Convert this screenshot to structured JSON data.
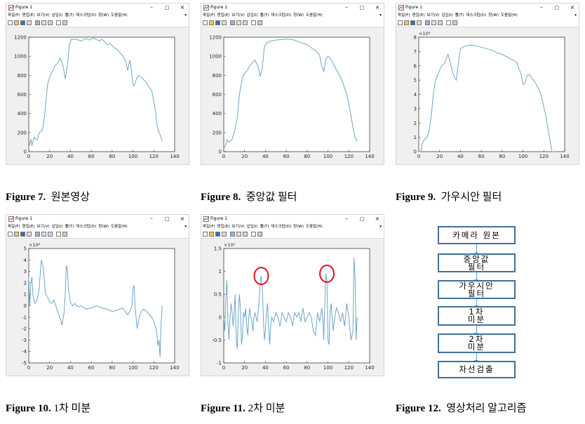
{
  "window": {
    "title": "Figure 1",
    "menu": [
      "파일(F)",
      "편집(E)",
      "보기(V)",
      "삽입(I)",
      "툴(T)",
      "데스크탑(D)",
      "창(W)",
      "도움말(H)"
    ]
  },
  "captions": [
    {
      "num": "Figure 7.",
      "text": "원본영상"
    },
    {
      "num": "Figure 8.",
      "text": "중앙값 필터"
    },
    {
      "num": "Figure 9.",
      "text": "가우시안 필터"
    },
    {
      "num": "Figure 10.",
      "text": "1차 미분"
    },
    {
      "num": "Figure 11.",
      "text": "2차 미분"
    },
    {
      "num": "Figure 12.",
      "text": "영상처리 알고리즘"
    }
  ],
  "flowchart": {
    "steps": [
      {
        "line1": "카메라 원본",
        "line2": ""
      },
      {
        "line1": "중앙값",
        "line2": "필터"
      },
      {
        "line1": "가우시안",
        "line2": "필터"
      },
      {
        "line1": "1차",
        "line2": "미분"
      },
      {
        "line1": "2차",
        "line2": "미분"
      },
      {
        "line1": "차선검출",
        "line2": ""
      }
    ]
  },
  "colors": {
    "line": "#6ea5c8",
    "highlight": "#e0101e",
    "flow_border": "#41719c"
  },
  "chart_data": [
    {
      "type": "line",
      "xlim": [
        0,
        140
      ],
      "ylim": [
        0,
        1200
      ],
      "xticks": [
        "0",
        "20",
        "40",
        "60",
        "80",
        "100",
        "120",
        "140"
      ],
      "yticks": [
        "0",
        "200",
        "400",
        "600",
        "800",
        "1000",
        "1200"
      ],
      "exponent": "",
      "series": [
        {
          "x": [
            0,
            2,
            3,
            5,
            8,
            10,
            13,
            15,
            18,
            20,
            23,
            25,
            28,
            30,
            33,
            35,
            37,
            39,
            41,
            43,
            45,
            48,
            50,
            53,
            55,
            58,
            60,
            62,
            65,
            68,
            70,
            73,
            75,
            78,
            80,
            83,
            85,
            88,
            90,
            93,
            95,
            97,
            98,
            100,
            101,
            103,
            105,
            108,
            110,
            113,
            115,
            118,
            120,
            122,
            123,
            125,
            127,
            128
          ],
          "y": [
            40,
            130,
            60,
            150,
            120,
            200,
            220,
            360,
            700,
            780,
            850,
            900,
            930,
            980,
            900,
            760,
            900,
            1120,
            1180,
            1175,
            1180,
            1170,
            1160,
            1175,
            1185,
            1170,
            1180,
            1190,
            1175,
            1160,
            1180,
            1150,
            1120,
            1135,
            1110,
            1080,
            1070,
            1030,
            1010,
            950,
            850,
            960,
            900,
            700,
            690,
            750,
            800,
            780,
            760,
            720,
            680,
            640,
            530,
            400,
            280,
            200,
            150,
            110
          ]
        }
      ]
    },
    {
      "type": "line",
      "xlim": [
        0,
        140
      ],
      "ylim": [
        0,
        1200
      ],
      "xticks": [
        "0",
        "20",
        "40",
        "60",
        "80",
        "100",
        "120",
        "140"
      ],
      "yticks": [
        "0",
        "200",
        "400",
        "600",
        "800",
        "1000",
        "1200"
      ],
      "exponent": "",
      "series": [
        {
          "x": [
            0,
            2,
            3,
            5,
            8,
            10,
            13,
            15,
            18,
            20,
            23,
            25,
            28,
            30,
            33,
            35,
            37,
            39,
            41,
            45,
            50,
            55,
            60,
            65,
            68,
            70,
            73,
            75,
            78,
            80,
            83,
            85,
            88,
            90,
            92,
            94,
            96,
            97,
            98,
            100,
            102,
            104,
            106,
            108,
            110,
            112,
            115,
            118,
            120,
            122,
            124,
            126,
            128
          ],
          "y": [
            30,
            80,
            120,
            100,
            130,
            200,
            350,
            600,
            780,
            820,
            860,
            900,
            940,
            960,
            890,
            790,
            880,
            1100,
            1140,
            1160,
            1170,
            1175,
            1180,
            1175,
            1170,
            1160,
            1150,
            1140,
            1130,
            1120,
            1100,
            1080,
            1060,
            1040,
            1010,
            900,
            840,
            900,
            970,
            1000,
            980,
            950,
            900,
            860,
            820,
            780,
            700,
            600,
            500,
            380,
            250,
            150,
            110
          ]
        }
      ]
    },
    {
      "type": "line",
      "xlim": [
        0,
        140
      ],
      "ylim": [
        0,
        8
      ],
      "xticks": [
        "0",
        "20",
        "40",
        "60",
        "80",
        "100",
        "120",
        "140"
      ],
      "yticks": [
        "0",
        "1",
        "2",
        "3",
        "4",
        "5",
        "6",
        "7",
        "8"
      ],
      "exponent": "×10⁴",
      "series": [
        {
          "x": [
            0,
            2,
            3,
            5,
            8,
            10,
            12,
            14,
            16,
            18,
            20,
            22,
            25,
            28,
            30,
            32,
            34,
            36,
            38,
            40,
            45,
            50,
            55,
            60,
            65,
            70,
            75,
            80,
            85,
            90,
            93,
            95,
            96,
            98,
            100,
            102,
            104,
            106,
            108,
            110,
            112,
            115,
            118,
            120,
            122,
            124,
            126,
            127,
            128,
            130
          ],
          "y": [
            0,
            0,
            0.5,
            0.8,
            1,
            1.5,
            2.5,
            4,
            5,
            5.3,
            5.7,
            6,
            6.2,
            6.8,
            6.3,
            5.7,
            5.2,
            5.0,
            6.2,
            7.2,
            7.4,
            7.45,
            7.4,
            7.3,
            7.2,
            7.1,
            6.9,
            6.8,
            6.6,
            6.4,
            6.3,
            6.1,
            5.8,
            5.5,
            4.7,
            4.8,
            5.3,
            5.4,
            5.2,
            5.0,
            4.8,
            4.4,
            3.8,
            3.1,
            2.5,
            1.6,
            0.8,
            0.3,
            0,
            0
          ]
        }
      ]
    },
    {
      "type": "line",
      "xlim": [
        0,
        140
      ],
      "ylim": [
        -5,
        5
      ],
      "xticks": [
        "0",
        "20",
        "40",
        "60",
        "80",
        "100",
        "120",
        "140"
      ],
      "yticks": [
        "-5",
        "-4",
        "-3",
        "-2",
        "-1",
        "0",
        "1",
        "2",
        "3",
        "4",
        "5"
      ],
      "exponent": "×10⁴",
      "series": [
        {
          "x": [
            0,
            1,
            2,
            3,
            4,
            5,
            6,
            8,
            10,
            12,
            14,
            16,
            18,
            20,
            22,
            24,
            26,
            28,
            30,
            32,
            34,
            35,
            36,
            37,
            38,
            40,
            42,
            44,
            46,
            48,
            50,
            55,
            60,
            65,
            70,
            75,
            80,
            85,
            90,
            95,
            98,
            99,
            100,
            101,
            102,
            104,
            106,
            108,
            110,
            112,
            114,
            116,
            118,
            120,
            122,
            123,
            124,
            125,
            126,
            127,
            128
          ],
          "y": [
            2.5,
            0,
            2,
            2.5,
            1,
            0.5,
            0.2,
            0.5,
            1.5,
            4,
            3.3,
            1,
            0.8,
            0.3,
            0.2,
            0.5,
            0,
            -0.6,
            -1.1,
            -1.7,
            -0.5,
            1,
            3.5,
            3.2,
            1.5,
            0.3,
            0,
            0.2,
            0,
            -0.1,
            0,
            -0.3,
            -0.2,
            0,
            -0.2,
            -0.3,
            -0.5,
            -0.4,
            -0.2,
            -0.8,
            -0.3,
            0,
            1.5,
            1.8,
            0,
            -2,
            -1,
            -0.5,
            -0.3,
            -0.4,
            -0.6,
            -0.8,
            -1,
            -1.4,
            -2,
            -2.5,
            -3.5,
            -3,
            -4.5,
            -1.5,
            0
          ]
        }
      ]
    },
    {
      "type": "line",
      "xlim": [
        0,
        140
      ],
      "ylim": [
        -1,
        1.5
      ],
      "xticks": [
        "0",
        "20",
        "40",
        "60",
        "80",
        "100",
        "120",
        "140"
      ],
      "yticks": [
        "-1",
        "-0.5",
        "0",
        "0.5",
        "1",
        "1.5"
      ],
      "exponent": "×10⁵",
      "series": [
        {
          "x": [
            0,
            1,
            2,
            3,
            4,
            5,
            6,
            7,
            8,
            9,
            10,
            11,
            12,
            13,
            14,
            15,
            16,
            17,
            18,
            19,
            20,
            21,
            22,
            23,
            24,
            25,
            26,
            27,
            28,
            29,
            30,
            31,
            32,
            33,
            34,
            35,
            36,
            37,
            38,
            39,
            40,
            41,
            42,
            43,
            44,
            45,
            46,
            48,
            50,
            52,
            54,
            56,
            58,
            60,
            62,
            64,
            66,
            68,
            70,
            72,
            74,
            76,
            78,
            80,
            82,
            84,
            86,
            88,
            90,
            92,
            94,
            95,
            96,
            97,
            98,
            99,
            100,
            101,
            102,
            103,
            104,
            105,
            106,
            108,
            110,
            112,
            114,
            116,
            118,
            120,
            122,
            124,
            125,
            126,
            127,
            128
          ],
          "y": [
            0,
            -0.3,
            0.4,
            0.8,
            -0.1,
            -0.5,
            0,
            0.3,
            0.1,
            -0.2,
            0.1,
            0.5,
            -0.5,
            -0.7,
            0.1,
            0.5,
            0.2,
            -0.6,
            -0.4,
            0.1,
            0,
            0.2,
            -0.2,
            -0.4,
            0,
            0.2,
            0,
            -0.1,
            -0.3,
            0,
            0.1,
            0,
            -0.1,
            0.1,
            0.4,
            0.8,
            0.9,
            0.6,
            0,
            -0.5,
            -0.3,
            0.1,
            0.3,
            -0.2,
            -0.6,
            -0.2,
            0,
            -0.1,
            0.1,
            0,
            -0.2,
            0.1,
            0,
            -0.1,
            0.1,
            0,
            -0.2,
            0.1,
            0,
            0.1,
            -0.1,
            0.2,
            -0.1,
            0,
            0.1,
            0,
            -0.3,
            -0.4,
            0.1,
            -0.1,
            0.2,
            0,
            -0.5,
            0.3,
            0.95,
            0.8,
            -0.5,
            -0.6,
            0.1,
            0.3,
            0,
            -0.3,
            -0.1,
            0.2,
            0.1,
            -0.1,
            0.1,
            -0.2,
            0.3,
            0,
            -0.5,
            -0.3,
            1.3,
            0.9,
            -0.5,
            0
          ]
        }
      ]
    }
  ],
  "highlights": [
    {
      "chart": 4,
      "x": 36,
      "y": 0.9
    },
    {
      "chart": 4,
      "x": 99,
      "y": 0.95
    }
  ]
}
